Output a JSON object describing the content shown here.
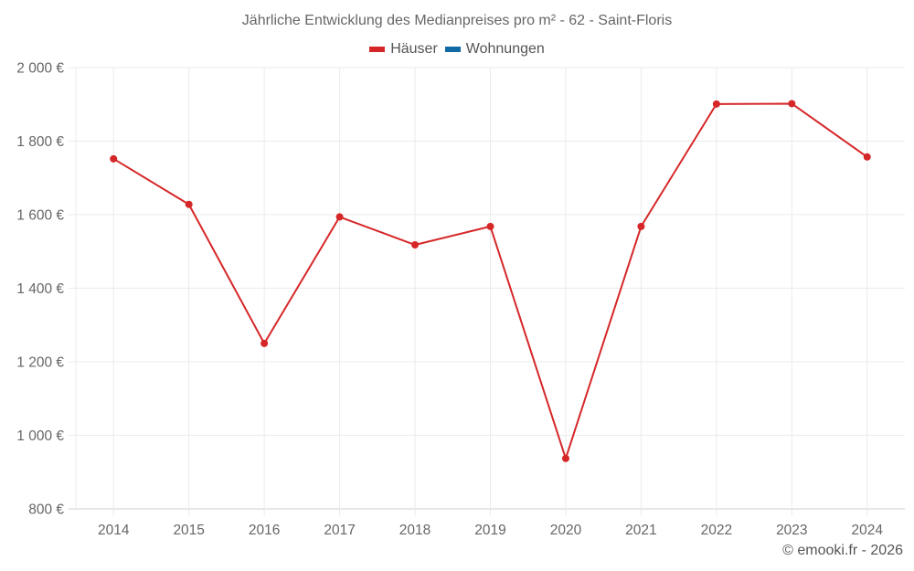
{
  "chart": {
    "title": "Jährliche Entwicklung des Medianpreises pro m² - 62 - Saint-Floris",
    "legend": [
      {
        "label": "Häuser",
        "color": "#d62728"
      },
      {
        "label": "Wohnungen",
        "color": "#0f6aa6"
      }
    ],
    "credit": "© emooki.fr - 2026",
    "y_tick_labels": [
      "2 000 €",
      "1 800 €",
      "1 600 €",
      "1 400 €",
      "1 200 €",
      "1 000 €",
      "800 €"
    ]
  },
  "chart_data": {
    "type": "line",
    "title": "Jährliche Entwicklung des Medianpreises pro m² - 62 - Saint-Floris",
    "xlabel": "",
    "ylabel": "",
    "categories": [
      "2014",
      "2015",
      "2016",
      "2017",
      "2018",
      "2019",
      "2020",
      "2021",
      "2022",
      "2023",
      "2024"
    ],
    "series": [
      {
        "name": "Häuser",
        "color": "#d62728",
        "values": [
          1752,
          1628,
          1250,
          1594,
          1518,
          1568,
          937,
          1568,
          1901,
          1902,
          1757
        ]
      },
      {
        "name": "Wohnungen",
        "color": "#0f6aa6",
        "values": []
      }
    ],
    "ylim": [
      800,
      2000
    ],
    "yticks": [
      800,
      1000,
      1200,
      1400,
      1600,
      1800,
      2000
    ],
    "grid": true,
    "legend_position": "top"
  }
}
